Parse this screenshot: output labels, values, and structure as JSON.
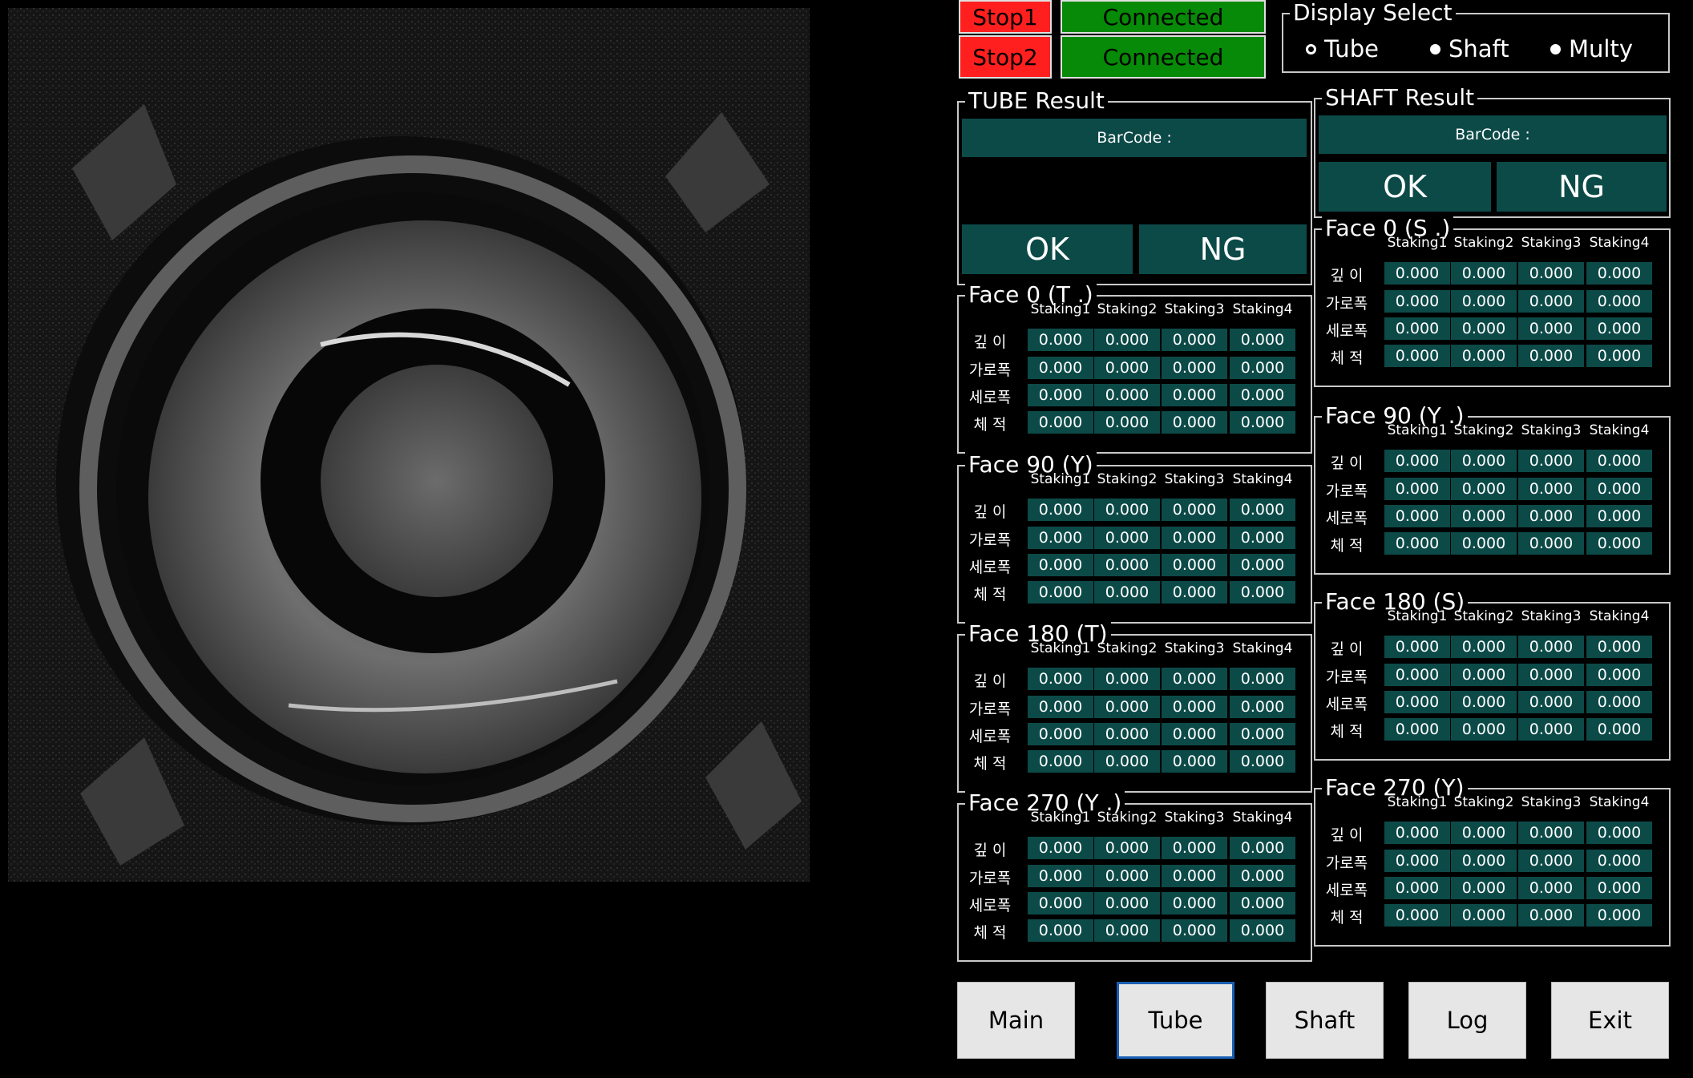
{
  "status": {
    "stop1": "Stop1",
    "stop2": "Stop2",
    "conn1": "Connected",
    "conn2": "Connected"
  },
  "display_select": {
    "title": "Display Select",
    "options": [
      {
        "label": "Tube",
        "selected": false
      },
      {
        "label": "Shaft",
        "selected": true
      },
      {
        "label": "Multy",
        "selected": true
      }
    ]
  },
  "tube_result": {
    "title": "TUBE Result",
    "barcode_label": "BarCode :",
    "ok": "OK",
    "ng": "NG"
  },
  "shaft_result": {
    "title": "SHAFT Result",
    "barcode_label": "BarCode :",
    "ok": "OK",
    "ng": "NG"
  },
  "columns": [
    "Staking1",
    "Staking2",
    "Staking3",
    "Staking4"
  ],
  "rows": [
    "깊 이",
    "가로폭",
    "세로폭",
    "체 적"
  ],
  "tube_faces": [
    {
      "title": "Face 0 (T .)",
      "values": [
        [
          "0.000",
          "0.000",
          "0.000",
          "0.000"
        ],
        [
          "0.000",
          "0.000",
          "0.000",
          "0.000"
        ],
        [
          "0.000",
          "0.000",
          "0.000",
          "0.000"
        ],
        [
          "0.000",
          "0.000",
          "0.000",
          "0.000"
        ]
      ]
    },
    {
      "title": "Face 90 (Y)",
      "values": [
        [
          "0.000",
          "0.000",
          "0.000",
          "0.000"
        ],
        [
          "0.000",
          "0.000",
          "0.000",
          "0.000"
        ],
        [
          "0.000",
          "0.000",
          "0.000",
          "0.000"
        ],
        [
          "0.000",
          "0.000",
          "0.000",
          "0.000"
        ]
      ]
    },
    {
      "title": "Face 180 (T)",
      "values": [
        [
          "0.000",
          "0.000",
          "0.000",
          "0.000"
        ],
        [
          "0.000",
          "0.000",
          "0.000",
          "0.000"
        ],
        [
          "0.000",
          "0.000",
          "0.000",
          "0.000"
        ],
        [
          "0.000",
          "0.000",
          "0.000",
          "0.000"
        ]
      ]
    },
    {
      "title": "Face 270 (Y .)",
      "values": [
        [
          "0.000",
          "0.000",
          "0.000",
          "0.000"
        ],
        [
          "0.000",
          "0.000",
          "0.000",
          "0.000"
        ],
        [
          "0.000",
          "0.000",
          "0.000",
          "0.000"
        ],
        [
          "0.000",
          "0.000",
          "0.000",
          "0.000"
        ]
      ]
    }
  ],
  "shaft_faces": [
    {
      "title": "Face 0 (S .)",
      "values": [
        [
          "0.000",
          "0.000",
          "0.000",
          "0.000"
        ],
        [
          "0.000",
          "0.000",
          "0.000",
          "0.000"
        ],
        [
          "0.000",
          "0.000",
          "0.000",
          "0.000"
        ],
        [
          "0.000",
          "0.000",
          "0.000",
          "0.000"
        ]
      ]
    },
    {
      "title": "Face 90 (Y .)",
      "values": [
        [
          "0.000",
          "0.000",
          "0.000",
          "0.000"
        ],
        [
          "0.000",
          "0.000",
          "0.000",
          "0.000"
        ],
        [
          "0.000",
          "0.000",
          "0.000",
          "0.000"
        ],
        [
          "0.000",
          "0.000",
          "0.000",
          "0.000"
        ]
      ]
    },
    {
      "title": "Face 180 (S)",
      "values": [
        [
          "0.000",
          "0.000",
          "0.000",
          "0.000"
        ],
        [
          "0.000",
          "0.000",
          "0.000",
          "0.000"
        ],
        [
          "0.000",
          "0.000",
          "0.000",
          "0.000"
        ],
        [
          "0.000",
          "0.000",
          "0.000",
          "0.000"
        ]
      ]
    },
    {
      "title": "Face 270 (Y)",
      "values": [
        [
          "0.000",
          "0.000",
          "0.000",
          "0.000"
        ],
        [
          "0.000",
          "0.000",
          "0.000",
          "0.000"
        ],
        [
          "0.000",
          "0.000",
          "0.000",
          "0.000"
        ],
        [
          "0.000",
          "0.000",
          "0.000",
          "0.000"
        ]
      ]
    }
  ],
  "nav": {
    "main": "Main",
    "tube": "Tube",
    "shaft": "Shaft",
    "log": "Log",
    "exit": "Exit",
    "active": "Tube"
  }
}
